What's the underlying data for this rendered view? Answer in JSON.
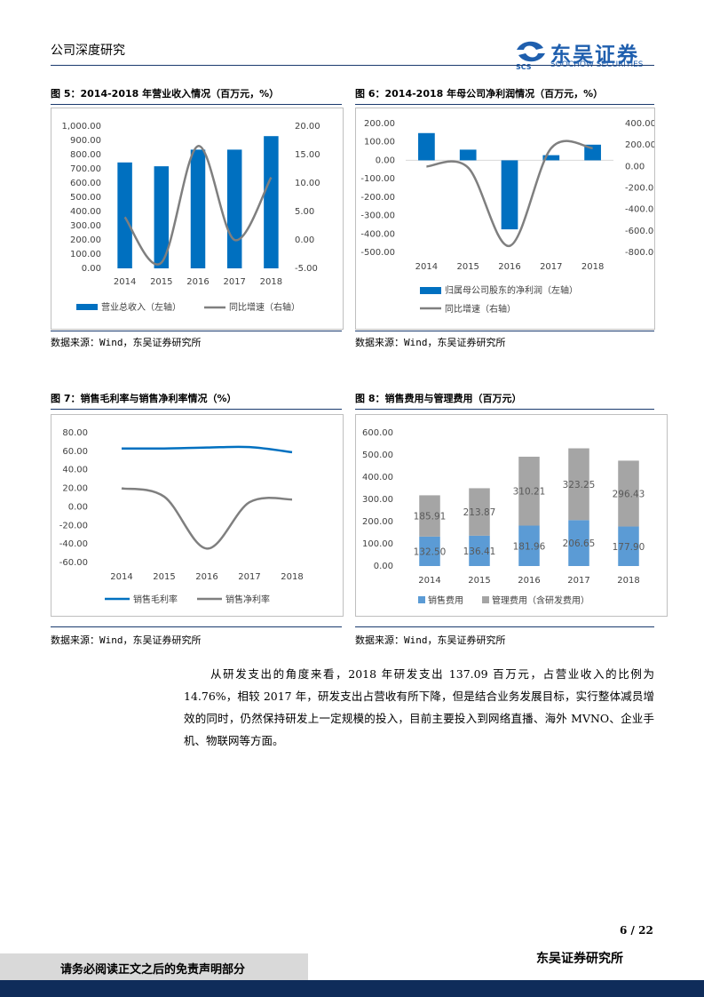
{
  "header": {
    "title": "公司深度研究",
    "logo_cn": "东吴证券",
    "logo_en": "SOOCHOW SECURITIES",
    "logo_mark": "SCS"
  },
  "figures": {
    "fig5": {
      "title": "图 5：2014-2018 年营业收入情况（百万元，%）",
      "source": "数据来源：Wind，东吴证券研究所"
    },
    "fig6": {
      "title": "图 6：2014-2018 年母公司净利润情况（百万元，%）",
      "source": "数据来源：Wind，东吴证券研究所"
    },
    "fig7": {
      "title": "图 7：销售毛利率与销售净利率情况（%）",
      "source": "数据来源：Wind，东吴证券研究所"
    },
    "fig8": {
      "title": "图 8：销售费用与管理费用（百万元）",
      "source": "数据来源：Wind，东吴证券研究所"
    }
  },
  "chart_data": [
    {
      "id": "fig5",
      "type": "bar+line",
      "categories": [
        "2014",
        "2015",
        "2016",
        "2017",
        "2018"
      ],
      "series": [
        {
          "name": "营业总收入（左轴）",
          "type": "bar",
          "axis": "left",
          "color": "#0070c0",
          "values": [
            745,
            718,
            835,
            835,
            930
          ]
        },
        {
          "name": "同比增速（右轴）",
          "type": "line",
          "axis": "right",
          "color": "#7f7f7f",
          "values": [
            4.0,
            -4.0,
            16.5,
            0.0,
            11.0
          ]
        }
      ],
      "left_axis": {
        "ticks": [
          "0.00",
          "100.00",
          "200.00",
          "300.00",
          "400.00",
          "500.00",
          "600.00",
          "700.00",
          "800.00",
          "900.00",
          "1,000.00"
        ],
        "ylim": [
          0,
          1000
        ]
      },
      "right_axis": {
        "ticks": [
          "-5.00",
          "0.00",
          "5.00",
          "10.00",
          "15.00",
          "20.00"
        ],
        "ylim": [
          -5,
          20
        ]
      },
      "legend": "bottom"
    },
    {
      "id": "fig6",
      "type": "bar+line",
      "categories": [
        "2014",
        "2015",
        "2016",
        "2017",
        "2018"
      ],
      "series": [
        {
          "name": "归属母公司股东的净利润（左轴）",
          "type": "bar",
          "axis": "left",
          "color": "#0070c0",
          "values": [
            148,
            58,
            -375,
            28,
            85
          ]
        },
        {
          "name": "同比增速（右轴）",
          "type": "line",
          "axis": "right",
          "color": "#7f7f7f",
          "values": [
            0,
            -10,
            -740,
            170,
            170
          ]
        }
      ],
      "left_axis": {
        "ticks": [
          "-500.00",
          "-400.00",
          "-300.00",
          "-200.00",
          "-100.00",
          "0.00",
          "100.00",
          "200.00"
        ],
        "ylim": [
          -500,
          200
        ]
      },
      "right_axis": {
        "ticks": [
          "-800.00",
          "-600.00",
          "-400.00",
          "-200.00",
          "0.00",
          "200.00",
          "400.00"
        ],
        "ylim": [
          -800,
          400
        ]
      },
      "legend": "bottom"
    },
    {
      "id": "fig7",
      "type": "line",
      "categories": [
        "2014",
        "2015",
        "2016",
        "2017",
        "2018"
      ],
      "series": [
        {
          "name": "销售毛利率",
          "color": "#0070c0",
          "values": [
            63,
            63,
            64,
            64.5,
            59
          ]
        },
        {
          "name": "销售净利率",
          "color": "#7f7f7f",
          "values": [
            20,
            11,
            -45,
            5,
            8
          ]
        }
      ],
      "y_axis": {
        "ticks": [
          "-60.00",
          "-40.00",
          "-20.00",
          "0.00",
          "20.00",
          "40.00",
          "60.00",
          "80.00"
        ],
        "ylim": [
          -60,
          80
        ]
      },
      "legend": "bottom"
    },
    {
      "id": "fig8",
      "type": "stacked-bar",
      "categories": [
        "2014",
        "2015",
        "2016",
        "2017",
        "2018"
      ],
      "series": [
        {
          "name": "销售费用",
          "color": "#5b9bd5",
          "values": [
            132.5,
            136.41,
            181.96,
            206.65,
            177.9
          ],
          "labels": [
            "132.50",
            "136.41",
            "181.96",
            "206.65",
            "177.90"
          ]
        },
        {
          "name": "管理费用（含研发费用）",
          "color": "#a5a5a5",
          "values": [
            185.91,
            213.87,
            310.21,
            323.25,
            296.43
          ],
          "labels": [
            "185.91",
            "213.87",
            "310.21",
            "323.25",
            "296.43"
          ]
        }
      ],
      "y_axis": {
        "ticks": [
          "0.00",
          "100.00",
          "200.00",
          "300.00",
          "400.00",
          "500.00",
          "600.00"
        ],
        "ylim": [
          0,
          600
        ]
      },
      "legend": "bottom"
    }
  ],
  "body_text": "从研发支出的角度来看，2018 年研发支出 137.09 百万元，占营业收入的比例为 14.76%，相较 2017 年，研发支出占营收有所下降，但是结合业务发展目标，实行整体减员增效的同时，仍然保持研发上一定规模的投入，目前主要投入到网络直播、海外 MVNO、企业手机、物联网等方面。",
  "footer": {
    "page": "6 / 22",
    "org": "东吴证券研究所",
    "disclaimer": "请务必阅读正文之后的免责声明部分"
  }
}
